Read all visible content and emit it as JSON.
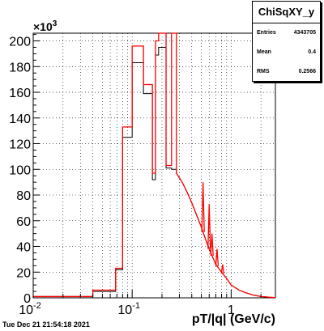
{
  "stats": {
    "title": "ChiSqXY_y",
    "entries_label": "Entries",
    "entries_value": "4343705",
    "mean_label": "Mean",
    "mean_value": "0.4",
    "rms_label": "RMS",
    "rms_value": "0.2566"
  },
  "timestamp": "Tue Dec 21 21:54:18 2021",
  "chart_data": {
    "type": "histogram",
    "xlabel": "pT/|q| (GeV/c)",
    "ylabel": "",
    "y_exponent": "×10^3",
    "x_scale": "log",
    "xlim": [
      0.01,
      2.8
    ],
    "ylim": [
      0,
      206
    ],
    "grid": true,
    "x_ticks": [
      "10^-2",
      "10^-1",
      "1"
    ],
    "y_ticks": [
      0,
      20,
      40,
      60,
      80,
      100,
      120,
      140,
      160,
      180,
      200
    ],
    "colors": {
      "black_series": "#000000",
      "red_series": "#ff0000"
    },
    "series": [
      {
        "color": "black",
        "x": [
          0.01,
          0.04,
          0.068,
          0.08,
          0.1,
          0.13,
          0.16,
          0.172,
          0.185,
          0.22,
          0.25,
          0.28
        ],
        "values": [
          1,
          5,
          22,
          125,
          183,
          159,
          92,
          189,
          195,
          101,
          100,
          97
        ]
      },
      {
        "color": "red",
        "x": [
          0.01,
          0.04,
          0.068,
          0.08,
          0.1,
          0.13,
          0.16,
          0.172,
          0.185,
          0.22,
          0.25,
          0.28
        ],
        "values": [
          1,
          6,
          23,
          133,
          196,
          166,
          97,
          200,
          206,
          103,
          206,
          97
        ]
      }
    ],
    "tail": {
      "x": [
        0.28,
        0.32,
        0.36,
        0.4,
        0.45,
        0.5,
        0.56,
        0.63,
        0.7,
        0.8,
        0.9,
        1.0,
        1.2,
        1.4,
        1.7,
        2.0,
        2.4,
        2.8
      ],
      "values": [
        97,
        90,
        82,
        74,
        64,
        55,
        44,
        34,
        26,
        20,
        15,
        10,
        6,
        4,
        2,
        1,
        0.5,
        0.2
      ]
    },
    "spikes": [
      {
        "x": 0.52,
        "value": 90
      },
      {
        "x": 0.6,
        "value": 73
      },
      {
        "x": 0.64,
        "value": 50
      },
      {
        "x": 0.72,
        "value": 38
      },
      {
        "x": 0.82,
        "value": 26
      }
    ]
  }
}
